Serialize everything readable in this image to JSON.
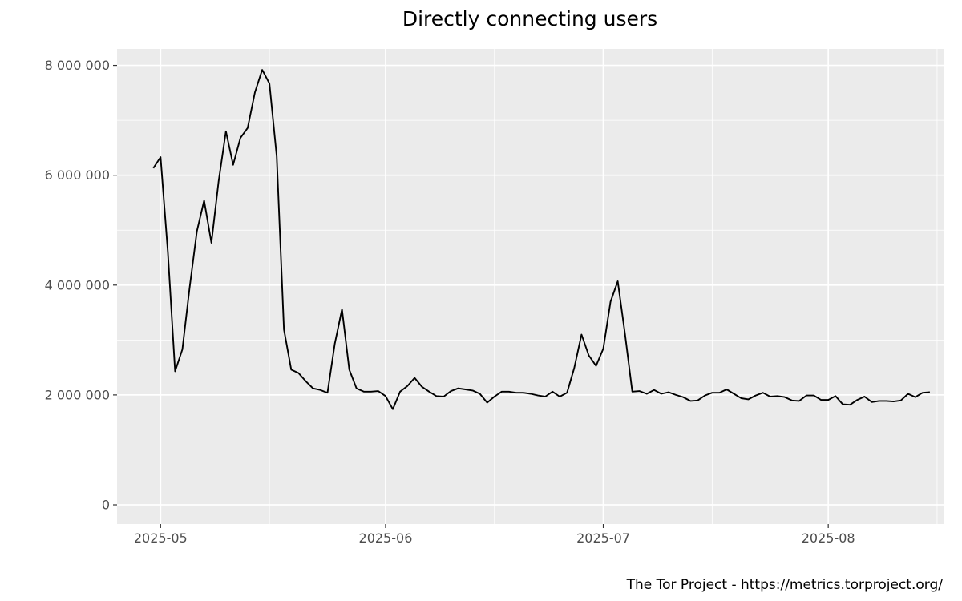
{
  "chart_data": {
    "type": "line",
    "title": "Directly connecting users",
    "caption": "The Tor Project - https://metrics.torproject.org/",
    "xlabel": "",
    "ylabel": "",
    "ylim": [
      -350000,
      8300000
    ],
    "xlim": [
      "2025-04-25",
      "2025-08-17"
    ],
    "grid": true,
    "legend": "none",
    "colors": {
      "panel": "#ebebeb",
      "grid": "#ffffff",
      "line": "#000000",
      "tick_text": "#4d4d4d"
    },
    "y_ticks": [
      {
        "value": 0,
        "label": "0"
      },
      {
        "value": 2000000,
        "label": "2 000 000"
      },
      {
        "value": 4000000,
        "label": "4 000 000"
      },
      {
        "value": 6000000,
        "label": "6 000 000"
      },
      {
        "value": 8000000,
        "label": "8 000 000"
      }
    ],
    "x_ticks": [
      {
        "date": "2025-05-01",
        "label": "2025-05"
      },
      {
        "date": "2025-06-01",
        "label": "2025-06"
      },
      {
        "date": "2025-07-01",
        "label": "2025-07"
      },
      {
        "date": "2025-08-01",
        "label": "2025-08"
      }
    ],
    "x_minor_ticks": [
      "2025-04-16",
      "2025-05-16",
      "2025-06-16",
      "2025-07-16",
      "2025-08-16"
    ],
    "series": [
      {
        "values": [
          [
            "2025-04-30",
            6130000
          ],
          [
            "2025-05-01",
            6330000
          ],
          [
            "2025-05-02",
            4600000
          ],
          [
            "2025-05-03",
            2430000
          ],
          [
            "2025-05-04",
            2830000
          ],
          [
            "2025-05-05",
            3950000
          ],
          [
            "2025-05-06",
            4980000
          ],
          [
            "2025-05-07",
            5540000
          ],
          [
            "2025-05-08",
            4770000
          ],
          [
            "2025-05-09",
            5890000
          ],
          [
            "2025-05-10",
            6800000
          ],
          [
            "2025-05-11",
            6190000
          ],
          [
            "2025-05-12",
            6680000
          ],
          [
            "2025-05-13",
            6860000
          ],
          [
            "2025-05-14",
            7510000
          ],
          [
            "2025-05-15",
            7920000
          ],
          [
            "2025-05-16",
            7670000
          ],
          [
            "2025-05-17",
            6340000
          ],
          [
            "2025-05-18",
            3190000
          ],
          [
            "2025-05-19",
            2460000
          ],
          [
            "2025-05-20",
            2400000
          ],
          [
            "2025-05-21",
            2250000
          ],
          [
            "2025-05-22",
            2120000
          ],
          [
            "2025-05-23",
            2090000
          ],
          [
            "2025-05-24",
            2040000
          ],
          [
            "2025-05-25",
            2930000
          ],
          [
            "2025-05-26",
            3560000
          ],
          [
            "2025-05-27",
            2460000
          ],
          [
            "2025-05-28",
            2120000
          ],
          [
            "2025-05-29",
            2060000
          ],
          [
            "2025-05-30",
            2060000
          ],
          [
            "2025-05-31",
            2070000
          ],
          [
            "2025-06-01",
            1980000
          ],
          [
            "2025-06-02",
            1740000
          ],
          [
            "2025-06-03",
            2060000
          ],
          [
            "2025-06-04",
            2160000
          ],
          [
            "2025-06-05",
            2310000
          ],
          [
            "2025-06-06",
            2150000
          ],
          [
            "2025-06-07",
            2060000
          ],
          [
            "2025-06-08",
            1980000
          ],
          [
            "2025-06-09",
            1970000
          ],
          [
            "2025-06-10",
            2070000
          ],
          [
            "2025-06-11",
            2120000
          ],
          [
            "2025-06-12",
            2100000
          ],
          [
            "2025-06-13",
            2080000
          ],
          [
            "2025-06-14",
            2020000
          ],
          [
            "2025-06-15",
            1860000
          ],
          [
            "2025-06-16",
            1970000
          ],
          [
            "2025-06-17",
            2060000
          ],
          [
            "2025-06-18",
            2060000
          ],
          [
            "2025-06-19",
            2040000
          ],
          [
            "2025-06-20",
            2040000
          ],
          [
            "2025-06-21",
            2020000
          ],
          [
            "2025-06-22",
            1990000
          ],
          [
            "2025-06-23",
            1970000
          ],
          [
            "2025-06-24",
            2060000
          ],
          [
            "2025-06-25",
            1970000
          ],
          [
            "2025-06-26",
            2040000
          ],
          [
            "2025-06-27",
            2490000
          ],
          [
            "2025-06-28",
            3100000
          ],
          [
            "2025-06-29",
            2720000
          ],
          [
            "2025-06-30",
            2530000
          ],
          [
            "2025-07-01",
            2840000
          ],
          [
            "2025-07-02",
            3700000
          ],
          [
            "2025-07-03",
            4070000
          ],
          [
            "2025-07-04",
            3100000
          ],
          [
            "2025-07-05",
            2060000
          ],
          [
            "2025-07-06",
            2070000
          ],
          [
            "2025-07-07",
            2020000
          ],
          [
            "2025-07-08",
            2090000
          ],
          [
            "2025-07-09",
            2020000
          ],
          [
            "2025-07-10",
            2050000
          ],
          [
            "2025-07-11",
            2000000
          ],
          [
            "2025-07-12",
            1960000
          ],
          [
            "2025-07-13",
            1890000
          ],
          [
            "2025-07-14",
            1900000
          ],
          [
            "2025-07-15",
            1990000
          ],
          [
            "2025-07-16",
            2040000
          ],
          [
            "2025-07-17",
            2040000
          ],
          [
            "2025-07-18",
            2100000
          ],
          [
            "2025-07-19",
            2020000
          ],
          [
            "2025-07-20",
            1940000
          ],
          [
            "2025-07-21",
            1920000
          ],
          [
            "2025-07-22",
            1990000
          ],
          [
            "2025-07-23",
            2040000
          ],
          [
            "2025-07-24",
            1970000
          ],
          [
            "2025-07-25",
            1980000
          ],
          [
            "2025-07-26",
            1960000
          ],
          [
            "2025-07-27",
            1900000
          ],
          [
            "2025-07-28",
            1890000
          ],
          [
            "2025-07-29",
            1990000
          ],
          [
            "2025-07-30",
            1990000
          ],
          [
            "2025-07-31",
            1910000
          ],
          [
            "2025-08-01",
            1910000
          ],
          [
            "2025-08-02",
            1980000
          ],
          [
            "2025-08-03",
            1830000
          ],
          [
            "2025-08-04",
            1820000
          ],
          [
            "2025-08-05",
            1910000
          ],
          [
            "2025-08-06",
            1970000
          ],
          [
            "2025-08-07",
            1870000
          ],
          [
            "2025-08-08",
            1890000
          ],
          [
            "2025-08-09",
            1890000
          ],
          [
            "2025-08-10",
            1880000
          ],
          [
            "2025-08-11",
            1900000
          ],
          [
            "2025-08-12",
            2020000
          ],
          [
            "2025-08-13",
            1960000
          ],
          [
            "2025-08-14",
            2040000
          ],
          [
            "2025-08-15",
            2050000
          ]
        ]
      }
    ]
  }
}
